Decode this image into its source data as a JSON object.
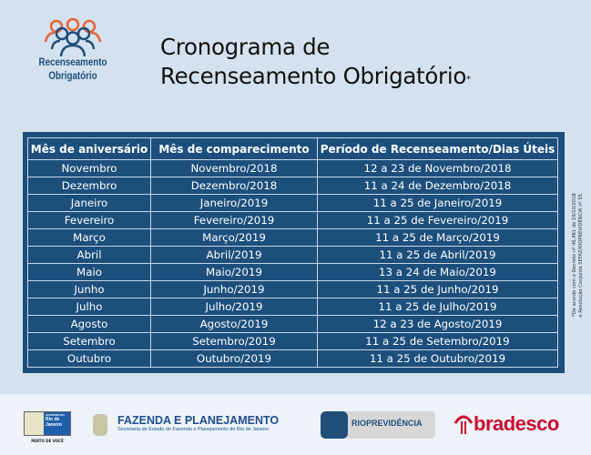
{
  "logo": {
    "line1": "Recenseamento",
    "line2": "Obrigatório"
  },
  "title": {
    "line1": "Cronograma de",
    "line2": "Recenseamento Obrigatório",
    "mark": "*"
  },
  "table": {
    "headers": [
      "Mês de aniversário",
      "Mês de comparecimento",
      "Período de Recenseamento/Dias Úteis"
    ],
    "rows": [
      [
        "Novembro",
        "Novembro/2018",
        "12 a 23 de Novembro/2018"
      ],
      [
        "Dezembro",
        "Dezembro/2018",
        "11 a 24 de Dezembro/2018"
      ],
      [
        "Janeiro",
        "Janeiro/2019",
        "11 a 25 de Janeiro/2019"
      ],
      [
        "Fevereiro",
        "Fevereiro/2019",
        "11 a 25 de Fevereiro/2019"
      ],
      [
        "Março",
        "Março/2019",
        "11 a 25 de Março/2019"
      ],
      [
        "Abril",
        "Abril/2019",
        "11 a 25 de Abril/2019"
      ],
      [
        "Maio",
        "Maio/2019",
        "13 a 24 de Maio/2019"
      ],
      [
        "Junho",
        "Junho/2019",
        "11 a 25 de Junho/2019"
      ],
      [
        "Julho",
        "Julho/2019",
        "11 a 25 de Julho/2019"
      ],
      [
        "Agosto",
        "Agosto/2019",
        "12 a 23 de Agosto/2019"
      ],
      [
        "Setembro",
        "Setembro/2019",
        "11 a 25 de Setembro/2019"
      ],
      [
        "Outubro",
        "Outubro/2019",
        "11 a 25 de Outubro/2019"
      ]
    ]
  },
  "note": {
    "line1": "*De acordo com o Decreto nº 46.481 de 29/10/2018",
    "line2": "e Resolução Conjunta SEFAZ/RIOPREVIDÊNCIA nº 55."
  },
  "footer": {
    "gov": {
      "line1": "GOVERNO DO",
      "line2": "Rio de",
      "line3": "Janeiro",
      "tagline": "PERTO DE VOCÊ"
    },
    "fazenda": {
      "name": "FAZENDA E PLANEJAMENTO",
      "sub": "Secretaria de Estado de Fazenda e Planejamento do Rio de Janeiro"
    },
    "rioprev": {
      "name": "RIOPREVIDÊNCIA"
    },
    "bradesco": {
      "name": "bradesco"
    }
  },
  "colors": {
    "panel": "#1c4f7c",
    "background": "#d3e2ee",
    "accent_orange": "#e8623a",
    "bradesco_red": "#cc0a2f"
  }
}
